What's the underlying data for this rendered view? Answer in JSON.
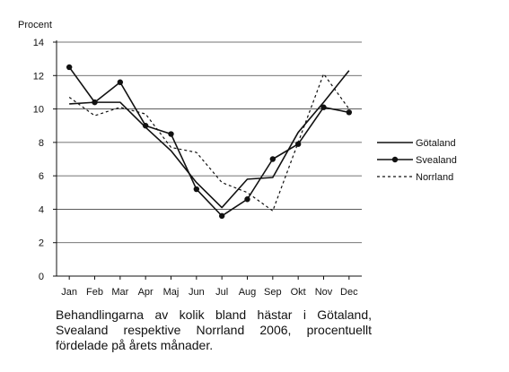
{
  "chart_data": {
    "type": "line",
    "ylabel": "Procent",
    "xlabel": "",
    "ylim": [
      0,
      14
    ],
    "yticks": [
      0,
      2,
      4,
      6,
      8,
      10,
      12,
      14
    ],
    "grid": "horizontal",
    "legend_position": "right",
    "categories": [
      "Jan",
      "Feb",
      "Mar",
      "Apr",
      "Maj",
      "Jun",
      "Jul",
      "Aug",
      "Sep",
      "Okt",
      "Nov",
      "Dec"
    ],
    "series": [
      {
        "name": "Götaland",
        "style": "solid",
        "marker": "none",
        "values": [
          10.3,
          10.4,
          10.4,
          8.9,
          7.5,
          5.6,
          4.1,
          5.8,
          5.9,
          8.6,
          10.4,
          12.3
        ]
      },
      {
        "name": "Svealand",
        "style": "solid",
        "marker": "circle",
        "values": [
          12.5,
          10.4,
          11.6,
          9.0,
          8.5,
          5.2,
          3.6,
          4.6,
          7.0,
          7.9,
          10.1,
          9.8
        ]
      },
      {
        "name": "Norrland",
        "style": "dotted",
        "marker": "none",
        "values": [
          10.7,
          9.6,
          10.1,
          9.7,
          7.7,
          7.4,
          5.6,
          5.0,
          3.9,
          8.0,
          12.1,
          10.0
        ]
      }
    ]
  },
  "caption": "Behandlingarna av kolik bland hästar i Götaland, Svealand respektive Norrland 2006, procentuellt fördelade på årets månader."
}
